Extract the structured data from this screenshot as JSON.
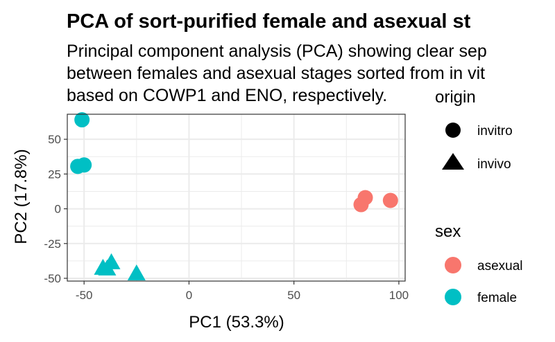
{
  "chart_data": {
    "type": "scatter",
    "title": "PCA of sort-purified female and asexual st",
    "subtitle_lines": [
      "Principal component analysis (PCA) showing clear sep",
      "between females and asexual stages sorted from in vit",
      "based on COWP1 and ENO, respectively."
    ],
    "xlabel": "PC1 (53.3%)",
    "ylabel": "PC2 (17.8%)",
    "xlim": [
      -58,
      103
    ],
    "ylim": [
      -52,
      68
    ],
    "x_ticks": [
      -50,
      0,
      50,
      100
    ],
    "x_tick_labels": [
      "-50",
      "0",
      "50",
      "100"
    ],
    "y_ticks": [
      -50,
      -25,
      0,
      25,
      50
    ],
    "y_tick_labels": [
      "-50",
      "-25",
      "0",
      "25",
      "50"
    ],
    "grid": true,
    "legend_position": "right",
    "legends": [
      {
        "title": "origin",
        "entries": [
          {
            "label": "invitro",
            "shape": "circle"
          },
          {
            "label": "invivo",
            "shape": "triangle"
          }
        ]
      },
      {
        "title": "sex",
        "entries": [
          {
            "label": "asexual",
            "color": "#F8766D"
          },
          {
            "label": "female",
            "color": "#00BFC4"
          }
        ]
      }
    ],
    "points": [
      {
        "x": -51,
        "y": 64,
        "sex": "female",
        "origin": "invitro"
      },
      {
        "x": -50,
        "y": 31.5,
        "sex": "female",
        "origin": "invitro"
      },
      {
        "x": -53,
        "y": 30.5,
        "sex": "female",
        "origin": "invitro"
      },
      {
        "x": -41,
        "y": -43,
        "sex": "female",
        "origin": "invivo"
      },
      {
        "x": -39,
        "y": -43.5,
        "sex": "female",
        "origin": "invivo"
      },
      {
        "x": -37,
        "y": -39,
        "sex": "female",
        "origin": "invivo"
      },
      {
        "x": -25,
        "y": -47,
        "sex": "female",
        "origin": "invivo"
      },
      {
        "x": 82,
        "y": 3,
        "sex": "asexual",
        "origin": "invitro"
      },
      {
        "x": 84,
        "y": 8,
        "sex": "asexual",
        "origin": "invitro"
      },
      {
        "x": 96,
        "y": 6,
        "sex": "asexual",
        "origin": "invitro"
      }
    ]
  }
}
